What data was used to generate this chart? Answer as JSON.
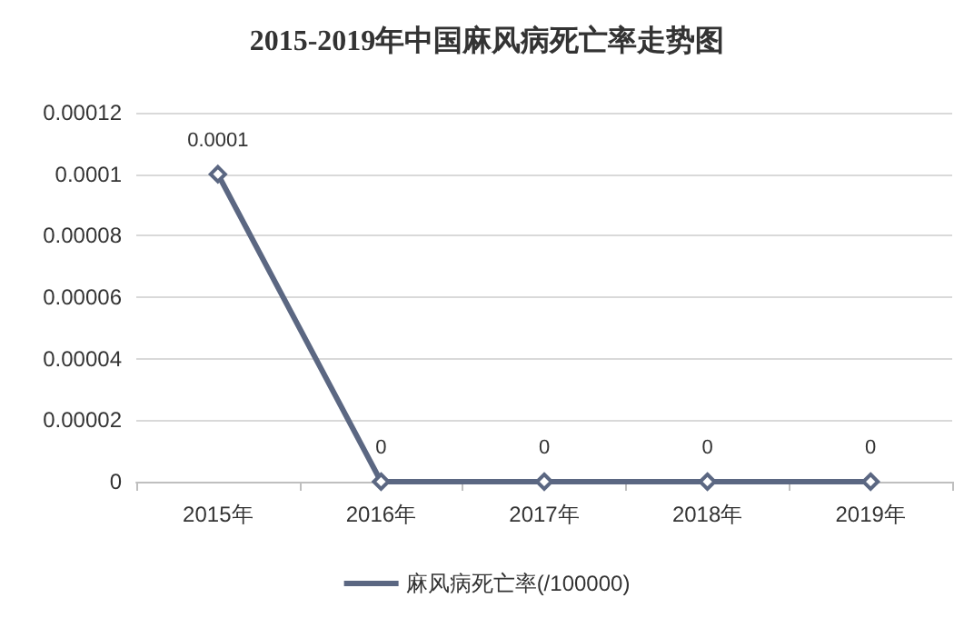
{
  "chart_data": {
    "type": "line",
    "title": "2015-2019年中国麻风病死亡率走势图",
    "categories": [
      "2015年",
      "2016年",
      "2017年",
      "2018年",
      "2019年"
    ],
    "series": [
      {
        "name": "麻风病死亡率(/100000)",
        "color": "#5b6782",
        "values": [
          0.0001,
          0,
          0,
          0,
          0
        ]
      }
    ],
    "ylim": [
      0,
      0.00012
    ],
    "yticks": [
      0,
      {
        "value": 2e-05,
        "label": "0.00002"
      },
      {
        "value": 4e-05,
        "label": "0.00004"
      },
      {
        "value": 6e-05,
        "label": "0.00006"
      },
      {
        "value": 8e-05,
        "label": "0.00008"
      },
      0.0001,
      0.00012
    ],
    "grid": "y",
    "legend": "bottom",
    "marker": "diamond",
    "line_style": "solid",
    "data_labels": true
  }
}
